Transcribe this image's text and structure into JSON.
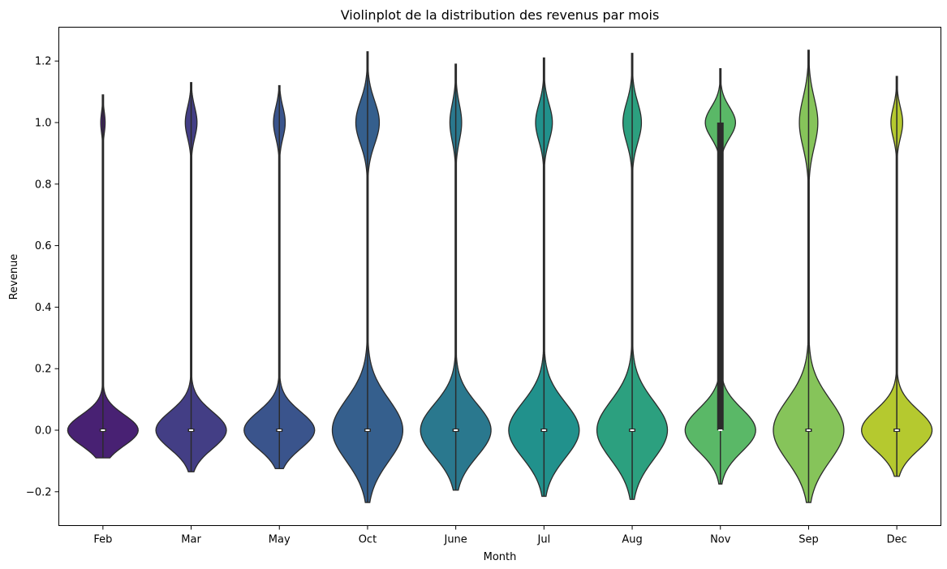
{
  "chart_data": {
    "type": "violin",
    "title": "Violinplot de la distribution des revenus par mois",
    "xlabel": "Month",
    "ylabel": "Revenue",
    "ylim": [
      -0.31,
      1.31
    ],
    "yticks": [
      -0.2,
      0.0,
      0.2,
      0.4,
      0.6,
      0.8,
      1.0,
      1.2
    ],
    "ytick_labels": [
      "−0.2",
      "0.0",
      "0.2",
      "0.4",
      "0.6",
      "0.8",
      "1.0",
      "1.2"
    ],
    "grid": false,
    "categories": [
      "Feb",
      "Mar",
      "May",
      "Oct",
      "June",
      "Jul",
      "Aug",
      "Nov",
      "Sep",
      "Dec"
    ],
    "violins": [
      {
        "category": "Feb",
        "color": "#482173",
        "min": -0.09,
        "max": 1.09,
        "median": 0.0,
        "q1": 0.0,
        "q3": 0.0,
        "low_width": 0.8,
        "high_width": 0.05,
        "high_spread": 0.035,
        "low_spread": 0.05
      },
      {
        "category": "Mar",
        "color": "#433e85",
        "min": -0.135,
        "max": 1.13,
        "median": 0.0,
        "q1": 0.0,
        "q3": 0.0,
        "low_width": 0.84,
        "high_width": 0.14,
        "high_spread": 0.05,
        "low_spread": 0.06
      },
      {
        "category": "May",
        "color": "#3a548c",
        "min": -0.125,
        "max": 1.12,
        "median": 0.0,
        "q1": 0.0,
        "q3": 0.0,
        "low_width": 0.84,
        "high_width": 0.14,
        "high_spread": 0.05,
        "low_spread": 0.06
      },
      {
        "category": "Oct",
        "color": "#355f8d",
        "min": -0.235,
        "max": 1.23,
        "median": 0.0,
        "q1": 0.0,
        "q3": 0.0,
        "low_width": 0.84,
        "high_width": 0.28,
        "high_spread": 0.07,
        "low_spread": 0.1
      },
      {
        "category": "June",
        "color": "#2a788e",
        "min": -0.195,
        "max": 1.19,
        "median": 0.0,
        "q1": 0.0,
        "q3": 0.0,
        "low_width": 0.84,
        "high_width": 0.14,
        "high_spread": 0.06,
        "low_spread": 0.085
      },
      {
        "category": "Jul",
        "color": "#21918c",
        "min": -0.215,
        "max": 1.21,
        "median": 0.0,
        "q1": 0.0,
        "q3": 0.0,
        "low_width": 0.84,
        "high_width": 0.2,
        "high_spread": 0.06,
        "low_spread": 0.09
      },
      {
        "category": "Aug",
        "color": "#2ca07f",
        "min": -0.225,
        "max": 1.225,
        "median": 0.0,
        "q1": 0.0,
        "q3": 0.0,
        "low_width": 0.84,
        "high_width": 0.22,
        "high_spread": 0.065,
        "low_spread": 0.095
      },
      {
        "category": "Nov",
        "color": "#5ab867",
        "min": -0.175,
        "max": 1.175,
        "median": 0.0,
        "q1": 0.0,
        "q3": 1.0,
        "low_width": 0.84,
        "high_width": 0.36,
        "high_spread": 0.05,
        "low_spread": 0.07
      },
      {
        "category": "Sep",
        "color": "#86c45a",
        "min": -0.235,
        "max": 1.235,
        "median": 0.0,
        "q1": 0.0,
        "q3": 0.0,
        "low_width": 0.84,
        "high_width": 0.22,
        "high_spread": 0.08,
        "low_spread": 0.1
      },
      {
        "category": "Dec",
        "color": "#b5c92f",
        "min": -0.15,
        "max": 1.15,
        "median": 0.0,
        "q1": 0.0,
        "q3": 0.0,
        "low_width": 0.84,
        "high_width": 0.14,
        "high_spread": 0.05,
        "low_spread": 0.065
      }
    ]
  }
}
